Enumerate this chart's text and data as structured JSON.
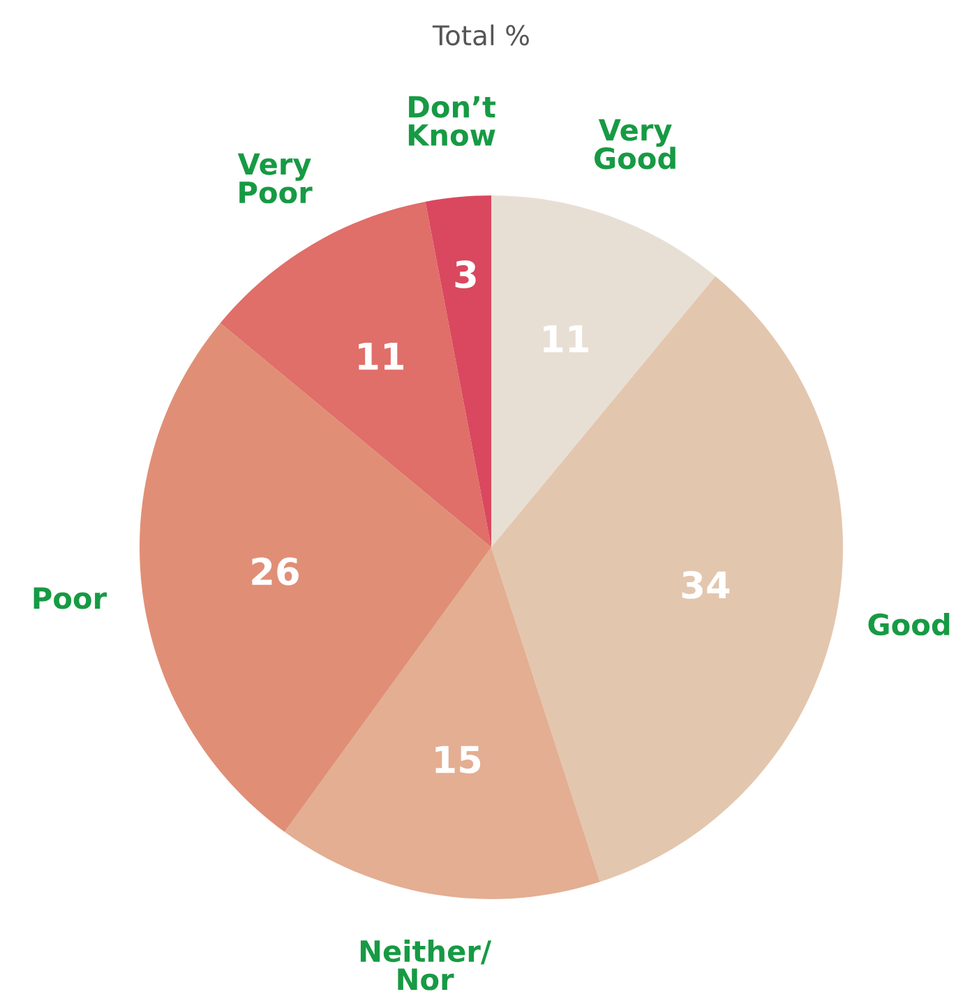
{
  "chart_data": {
    "type": "pie",
    "title": "Total %",
    "categories": [
      "Very\nGood",
      "Good",
      "Neither/\nNor",
      "Poor",
      "Very\nPoor",
      "Don’t\nKnow"
    ],
    "values": [
      11,
      34,
      15,
      26,
      11,
      3
    ],
    "colors": [
      "#e8dfd4",
      "#e3c6ae",
      "#e3ae92",
      "#e08f76",
      "#e06e69",
      "#d9485e"
    ],
    "data_labels": true,
    "legend": false
  }
}
